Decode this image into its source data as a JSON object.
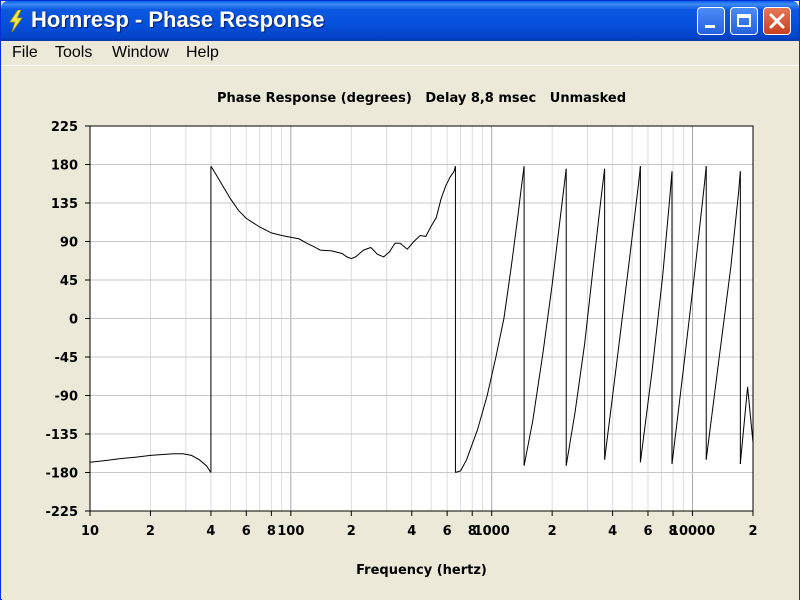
{
  "window": {
    "title": "Hornresp - Phase Response",
    "title_color": "#0550DB"
  },
  "menu": {
    "items": [
      "File",
      "Tools",
      "Window",
      "Help"
    ]
  },
  "chart_data": {
    "type": "line",
    "title": "Phase Response (degrees)   Delay 8,8 msec   Unmasked",
    "xlabel": "Frequency (hertz)",
    "ylabel": "",
    "x_scale": "log",
    "xlim": [
      10,
      20000
    ],
    "ylim": [
      -225,
      225
    ],
    "y_ticks": [
      225,
      180,
      135,
      90,
      45,
      0,
      -45,
      -90,
      -135,
      -180,
      -225
    ],
    "x_tick_labels": [
      {
        "value": 10,
        "label": "10"
      },
      {
        "value": 20,
        "label": "2"
      },
      {
        "value": 40,
        "label": "4"
      },
      {
        "value": 60,
        "label": "6"
      },
      {
        "value": 80,
        "label": "8"
      },
      {
        "value": 100,
        "label": "100"
      },
      {
        "value": 200,
        "label": "2"
      },
      {
        "value": 400,
        "label": "4"
      },
      {
        "value": 600,
        "label": "6"
      },
      {
        "value": 800,
        "label": "8"
      },
      {
        "value": 1000,
        "label": "1000"
      },
      {
        "value": 2000,
        "label": "2"
      },
      {
        "value": 4000,
        "label": "4"
      },
      {
        "value": 6000,
        "label": "6"
      },
      {
        "value": 8000,
        "label": "8"
      },
      {
        "value": 10000,
        "label": "10000"
      },
      {
        "value": 20000,
        "label": "2"
      }
    ],
    "grid": true,
    "line_color": "#000000",
    "series": [
      {
        "segments": [
          [
            [
              10,
              -168
            ],
            [
              12,
              -166
            ],
            [
              14,
              -164
            ],
            [
              17,
              -162
            ],
            [
              20,
              -160
            ],
            [
              23,
              -159
            ],
            [
              26,
              -158
            ],
            [
              29,
              -158
            ],
            [
              32,
              -160
            ],
            [
              35,
              -165
            ],
            [
              38,
              -172
            ],
            [
              40,
              -180
            ]
          ],
          [
            [
              40,
              178
            ],
            [
              42,
              170
            ],
            [
              45,
              158
            ],
            [
              50,
              140
            ],
            [
              55,
              126
            ],
            [
              60,
              117
            ],
            [
              70,
              107
            ],
            [
              80,
              100
            ],
            [
              90,
              97
            ],
            [
              100,
              95
            ],
            [
              110,
              93
            ],
            [
              120,
              88
            ],
            [
              130,
              84
            ],
            [
              140,
              80
            ],
            [
              160,
              79
            ],
            [
              180,
              76
            ],
            [
              190,
              72
            ],
            [
              200,
              70
            ],
            [
              210,
              72
            ],
            [
              230,
              80
            ],
            [
              250,
              83
            ],
            [
              270,
              75
            ],
            [
              290,
              72
            ],
            [
              310,
              78
            ],
            [
              330,
              88
            ],
            [
              350,
              88
            ],
            [
              380,
              81
            ],
            [
              410,
              90
            ],
            [
              440,
              97
            ],
            [
              470,
              96
            ],
            [
              500,
              108
            ],
            [
              530,
              118
            ],
            [
              560,
              140
            ],
            [
              590,
              155
            ],
            [
              620,
              165
            ],
            [
              650,
              172
            ],
            [
              660,
              178
            ]
          ],
          [
            [
              660,
              -180
            ],
            [
              700,
              -178
            ],
            [
              750,
              -165
            ],
            [
              850,
              -130
            ],
            [
              950,
              -90
            ],
            [
              1050,
              -45
            ],
            [
              1150,
              0
            ],
            [
              1250,
              60
            ],
            [
              1350,
              120
            ],
            [
              1400,
              150
            ],
            [
              1450,
              178
            ]
          ],
          [
            [
              1450,
              -172
            ],
            [
              1600,
              -120
            ],
            [
              1800,
              -40
            ],
            [
              2000,
              40
            ],
            [
              2200,
              120
            ],
            [
              2350,
              175
            ]
          ],
          [
            [
              2350,
              -172
            ],
            [
              2600,
              -110
            ],
            [
              2900,
              -30
            ],
            [
              3200,
              60
            ],
            [
              3500,
              140
            ],
            [
              3650,
              175
            ]
          ],
          [
            [
              3650,
              -165
            ],
            [
              4200,
              -50
            ],
            [
              4800,
              60
            ],
            [
              5400,
              160
            ],
            [
              5500,
              178
            ]
          ],
          [
            [
              5500,
              -168
            ],
            [
              6300,
              -60
            ],
            [
              7100,
              50
            ],
            [
              7700,
              140
            ],
            [
              7900,
              172
            ]
          ],
          [
            [
              7900,
              -170
            ],
            [
              9000,
              -60
            ],
            [
              10200,
              50
            ],
            [
              11500,
              160
            ],
            [
              11700,
              178
            ]
          ],
          [
            [
              11700,
              -165
            ],
            [
              13500,
              -50
            ],
            [
              15500,
              60
            ],
            [
              17000,
              150
            ],
            [
              17300,
              172
            ]
          ],
          [
            [
              17300,
              -170
            ],
            [
              18800,
              -80
            ],
            [
              20000,
              -145
            ]
          ]
        ]
      }
    ]
  }
}
